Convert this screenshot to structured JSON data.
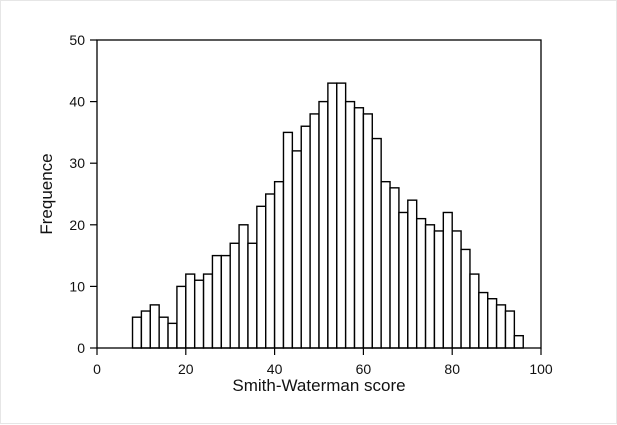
{
  "chart_data": {
    "type": "bar",
    "title": "",
    "xlabel": "Smith-Waterman score",
    "ylabel": "Frequence",
    "xlim": [
      0,
      100
    ],
    "ylim": [
      0,
      50
    ],
    "xticks": [
      0,
      20,
      40,
      60,
      80,
      100
    ],
    "yticks": [
      0,
      10,
      20,
      30,
      40,
      50
    ],
    "grid": false,
    "legend": null,
    "bin_width": 2,
    "bin_start": 8,
    "bin_edges_start": [
      8,
      10,
      12,
      14,
      16,
      18,
      20,
      22,
      24,
      26,
      28,
      30,
      32,
      34,
      36,
      38,
      40,
      42,
      44,
      46,
      48,
      50,
      52,
      54,
      56,
      58,
      60,
      62,
      64,
      66,
      68,
      70,
      72,
      74,
      76,
      78,
      80,
      82,
      84,
      86,
      88,
      90,
      92,
      94
    ],
    "values": [
      5,
      6,
      7,
      5,
      4,
      10,
      12,
      11,
      12,
      15,
      15,
      17,
      20,
      17,
      23,
      25,
      27,
      35,
      32,
      36,
      38,
      40,
      43,
      43,
      40,
      39,
      38,
      34,
      27,
      26,
      22,
      24,
      21,
      20,
      19,
      22,
      19,
      16,
      12,
      9,
      8,
      7,
      6,
      2
    ],
    "bar_fill": "#ffffff",
    "bar_edge": "#000000"
  }
}
